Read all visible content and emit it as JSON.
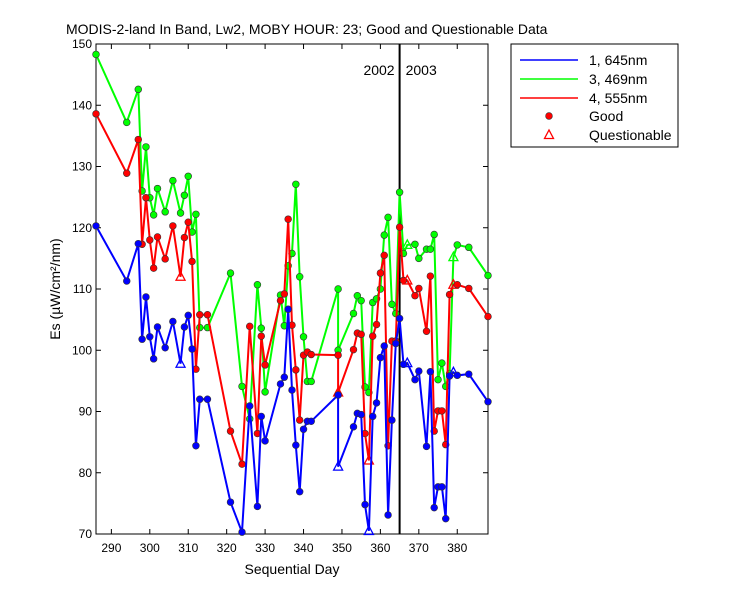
{
  "chart_data": {
    "type": "line",
    "title": "MODIS-2-land In Band,  Lw2, MOBY HOUR: 23;  Good and Questionable Data",
    "xlabel": "Sequential Day",
    "ylabel": "Es (µW/cm²/nm)",
    "xlim": [
      286,
      388
    ],
    "ylim": [
      70,
      150
    ],
    "xticks": [
      290,
      300,
      310,
      320,
      330,
      340,
      350,
      360,
      370,
      380
    ],
    "yticks": [
      70,
      80,
      90,
      100,
      110,
      120,
      130,
      140,
      150
    ],
    "grid": false,
    "legend_position": "outside-top-right",
    "year_divider": {
      "x": 365,
      "left_label": "2002",
      "right_label": "2003"
    },
    "legend": {
      "series_labels": [
        "1, 645nm",
        "3, 469nm",
        "4, 555nm"
      ],
      "good_label": "Good",
      "questionable_label": "Questionable"
    },
    "series": [
      {
        "name": "1, 645nm",
        "color": "#0000ff",
        "x": [
          286,
          294,
          297,
          298,
          299,
          300,
          301,
          302,
          304,
          306,
          308,
          309,
          310,
          311,
          312,
          313,
          315,
          321,
          324,
          326,
          328,
          329,
          330,
          334,
          335,
          336,
          337,
          338,
          339,
          340,
          341,
          342,
          349,
          349,
          353,
          354,
          355,
          356,
          357,
          358,
          359,
          360,
          361,
          362,
          363,
          364,
          365,
          366,
          367,
          369,
          370,
          372,
          373,
          374,
          375,
          376,
          377,
          378,
          379,
          380,
          383,
          388
        ],
        "y": [
          120.3,
          111.3,
          117.4,
          101.8,
          108.7,
          102.2,
          98.6,
          103.8,
          100.4,
          104.7,
          97.8,
          103.8,
          105.7,
          100.2,
          84.4,
          92.0,
          92.0,
          75.2,
          70.3,
          90.9,
          74.5,
          89.2,
          85.2,
          94.5,
          95.6,
          106.7,
          93.5,
          84.5,
          76.9,
          87.1,
          88.4,
          88.4,
          92.7,
          81.0,
          87.5,
          89.7,
          89.5,
          74.8,
          70.5,
          89.2,
          91.4,
          98.8,
          100.7,
          73.1,
          88.6,
          101.1,
          105.2,
          97.7,
          97.9,
          95.2,
          96.6,
          84.3,
          96.5,
          74.3,
          77.7,
          77.7,
          72.5,
          95.8,
          96.4,
          95.9,
          96.1,
          91.6
        ],
        "flags": [
          "G",
          "G",
          "G",
          "G",
          "G",
          "G",
          "G",
          "G",
          "G",
          "G",
          "Q",
          "G",
          "G",
          "G",
          "G",
          "G",
          "G",
          "G",
          "G",
          "G",
          "G",
          "G",
          "G",
          "G",
          "G",
          "G",
          "G",
          "G",
          "G",
          "G",
          "G",
          "G",
          "G",
          "Q",
          "G",
          "G",
          "G",
          "G",
          "Q",
          "G",
          "G",
          "G",
          "G",
          "G",
          "G",
          "G",
          "G",
          "G",
          "Q",
          "G",
          "G",
          "G",
          "G",
          "G",
          "G",
          "G",
          "G",
          "G",
          "Q",
          "G",
          "G",
          "G"
        ]
      },
      {
        "name": "3, 469nm",
        "color": "#00ff00",
        "x": [
          286,
          294,
          297,
          298,
          299,
          300,
          301,
          302,
          304,
          306,
          308,
          309,
          310,
          311,
          312,
          313,
          315,
          321,
          324,
          326,
          328,
          329,
          330,
          334,
          335,
          336,
          337,
          338,
          339,
          340,
          341,
          342,
          349,
          349,
          353,
          354,
          355,
          356,
          357,
          358,
          359,
          360,
          361,
          362,
          363,
          364,
          365,
          366,
          367,
          369,
          370,
          372,
          373,
          374,
          375,
          376,
          377,
          378,
          379,
          380,
          383,
          388
        ],
        "y": [
          148.3,
          137.2,
          142.6,
          126.0,
          133.2,
          124.9,
          122.1,
          126.4,
          122.6,
          127.7,
          122.4,
          125.3,
          128.4,
          119.3,
          122.2,
          103.7,
          103.7,
          112.6,
          94.1,
          88.8,
          110.7,
          103.6,
          93.2,
          109.0,
          104.0,
          113.8,
          115.8,
          127.1,
          112.0,
          102.2,
          94.9,
          94.9,
          110.0,
          100.0,
          106.0,
          108.9,
          108.1,
          94.0,
          93.1,
          107.8,
          108.4,
          110.0,
          118.8,
          121.7,
          107.5,
          106.0,
          125.8,
          115.8,
          117.2,
          117.3,
          115.0,
          116.5,
          116.5,
          118.9,
          95.2,
          97.9,
          94.1,
          96.2,
          115.2,
          117.2,
          116.8,
          112.2
        ],
        "flags": [
          "G",
          "G",
          "G",
          "G",
          "G",
          "G",
          "G",
          "G",
          "G",
          "G",
          "G",
          "G",
          "G",
          "G",
          "G",
          "G",
          "G",
          "G",
          "G",
          "G",
          "G",
          "G",
          "G",
          "G",
          "G",
          "G",
          "G",
          "G",
          "G",
          "G",
          "G",
          "G",
          "G",
          "G",
          "G",
          "G",
          "G",
          "G",
          "G",
          "G",
          "G",
          "G",
          "G",
          "G",
          "G",
          "G",
          "G",
          "G",
          "Q",
          "G",
          "G",
          "G",
          "G",
          "G",
          "G",
          "G",
          "G",
          "G",
          "Q",
          "G",
          "G",
          "G"
        ]
      },
      {
        "name": "4, 555nm",
        "color": "#ff0000",
        "x": [
          286,
          294,
          297,
          298,
          299,
          300,
          301,
          302,
          304,
          306,
          308,
          309,
          310,
          311,
          312,
          313,
          315,
          321,
          324,
          326,
          328,
          329,
          330,
          334,
          335,
          336,
          337,
          338,
          339,
          340,
          341,
          342,
          349,
          349,
          353,
          354,
          355,
          356,
          357,
          358,
          359,
          360,
          361,
          362,
          363,
          364,
          365,
          366,
          367,
          369,
          370,
          372,
          373,
          374,
          375,
          376,
          377,
          378,
          379,
          380,
          383,
          388
        ],
        "y": [
          138.6,
          128.9,
          134.4,
          117.3,
          124.9,
          118.0,
          113.4,
          118.5,
          114.9,
          120.3,
          112.0,
          118.4,
          120.9,
          114.5,
          96.9,
          105.8,
          105.8,
          86.8,
          81.4,
          103.9,
          86.4,
          102.3,
          97.6,
          108.1,
          109.2,
          121.4,
          104.1,
          96.8,
          88.6,
          99.2,
          99.7,
          99.3,
          99.2,
          93.1,
          100.1,
          102.8,
          102.6,
          86.4,
          82.0,
          102.3,
          104.2,
          112.6,
          115.5,
          84.4,
          101.5,
          101.5,
          120.1,
          111.4,
          111.4,
          108.9,
          110.1,
          103.1,
          112.1,
          86.8,
          90.1,
          90.1,
          84.6,
          109.1,
          110.7,
          110.7,
          110.1,
          105.5
        ],
        "flags": [
          "G",
          "G",
          "G",
          "G",
          "G",
          "G",
          "G",
          "G",
          "G",
          "G",
          "Q",
          "G",
          "G",
          "G",
          "G",
          "G",
          "G",
          "G",
          "G",
          "G",
          "G",
          "G",
          "G",
          "G",
          "G",
          "G",
          "G",
          "G",
          "G",
          "G",
          "G",
          "G",
          "G",
          "Q",
          "G",
          "G",
          "G",
          "G",
          "Q",
          "G",
          "G",
          "G",
          "G",
          "G",
          "G",
          "G",
          "G",
          "G",
          "Q",
          "G",
          "G",
          "G",
          "G",
          "G",
          "G",
          "G",
          "G",
          "G",
          "Q",
          "G",
          "G",
          "G"
        ]
      }
    ]
  }
}
